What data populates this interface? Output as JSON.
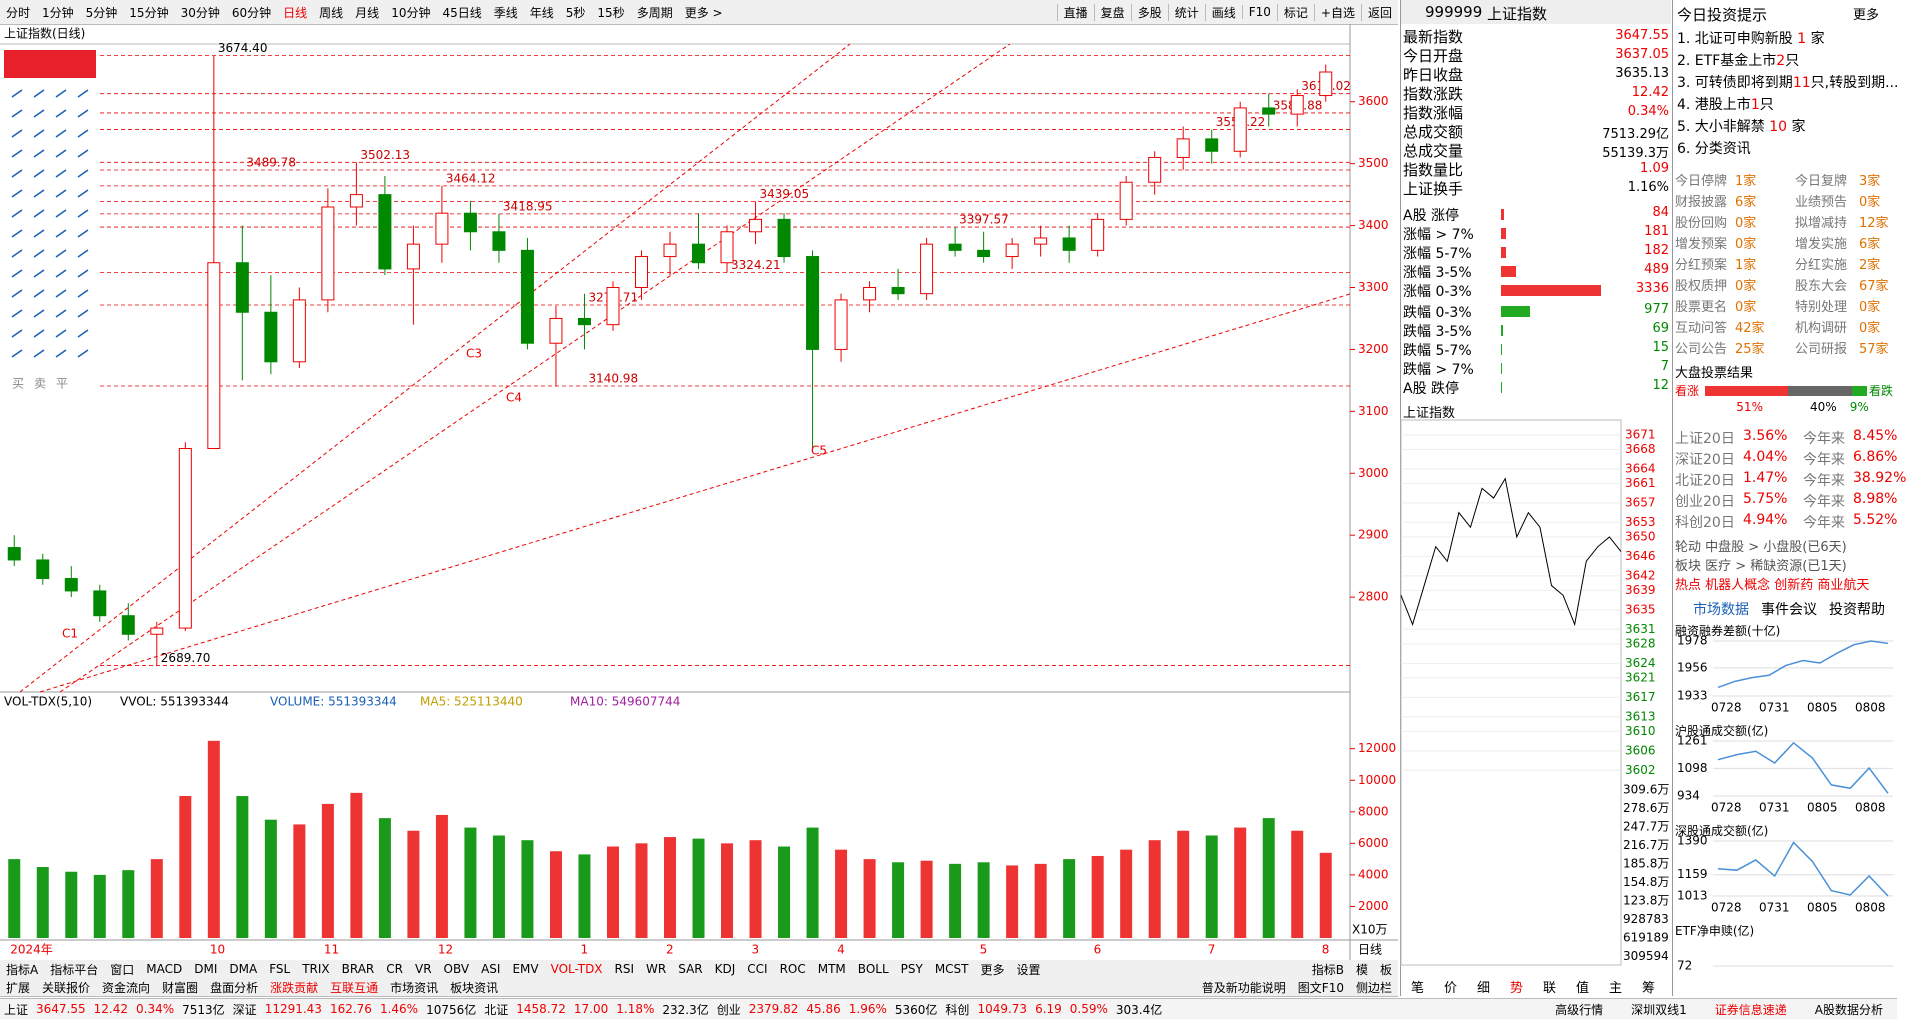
{
  "menu": [
    "分时",
    "1分钟",
    "5分钟",
    "15分钟",
    "30分钟",
    "60分钟",
    "日线",
    "周线",
    "月线",
    "10分钟",
    "45日线",
    "季线",
    "年线",
    "5秒",
    "15秒",
    "多周期",
    "更多 >"
  ],
  "menu_right": [
    "直播",
    "复盘",
    "多股",
    "统计",
    "画线",
    "F10",
    "标记",
    "+自选",
    "返回"
  ],
  "chart_title": "上证指数(日线)",
  "draw_tools": [
    "买",
    "卖",
    "平"
  ],
  "chart_data": {
    "type": "candlestick",
    "categories": [
      "2024年",
      null,
      null,
      null,
      null,
      null,
      null,
      "10",
      null,
      null,
      null,
      "11",
      null,
      null,
      null,
      "12",
      null,
      null,
      null,
      null,
      "1",
      null,
      null,
      "2",
      null,
      null,
      "3",
      null,
      null,
      "4",
      null,
      null,
      null,
      null,
      "5",
      null,
      null,
      null,
      "6",
      null,
      null,
      null,
      "7",
      null,
      null,
      null,
      "8"
    ],
    "candles": [
      [
        2880,
        2900,
        2850,
        2860
      ],
      [
        2860,
        2870,
        2820,
        2830
      ],
      [
        2830,
        2850,
        2800,
        2810
      ],
      [
        2810,
        2820,
        2760,
        2770
      ],
      [
        2770,
        2790,
        2730,
        2740
      ],
      [
        2740,
        2760,
        2690,
        2750
      ],
      [
        2750,
        3050,
        2745,
        3040
      ],
      [
        3040,
        3674,
        3040,
        3340
      ],
      [
        3340,
        3400,
        3150,
        3260
      ],
      [
        3260,
        3320,
        3160,
        3180
      ],
      [
        3180,
        3300,
        3170,
        3280
      ],
      [
        3280,
        3460,
        3260,
        3430
      ],
      [
        3430,
        3502,
        3400,
        3450
      ],
      [
        3450,
        3480,
        3320,
        3330
      ],
      [
        3330,
        3400,
        3240,
        3370
      ],
      [
        3370,
        3464,
        3340,
        3420
      ],
      [
        3420,
        3440,
        3360,
        3390
      ],
      [
        3390,
        3419,
        3340,
        3360
      ],
      [
        3360,
        3380,
        3200,
        3210
      ],
      [
        3210,
        3270,
        3140,
        3250
      ],
      [
        3250,
        3290,
        3200,
        3240
      ],
      [
        3240,
        3310,
        3230,
        3300
      ],
      [
        3300,
        3360,
        3280,
        3350
      ],
      [
        3350,
        3390,
        3320,
        3370
      ],
      [
        3370,
        3420,
        3330,
        3340
      ],
      [
        3340,
        3400,
        3324,
        3390
      ],
      [
        3390,
        3439,
        3370,
        3410
      ],
      [
        3410,
        3420,
        3340,
        3350
      ],
      [
        3350,
        3360,
        3040,
        3200
      ],
      [
        3200,
        3290,
        3180,
        3280
      ],
      [
        3280,
        3310,
        3260,
        3300
      ],
      [
        3300,
        3330,
        3280,
        3290
      ],
      [
        3290,
        3380,
        3280,
        3370
      ],
      [
        3370,
        3397,
        3350,
        3360
      ],
      [
        3360,
        3390,
        3340,
        3350
      ],
      [
        3350,
        3380,
        3330,
        3370
      ],
      [
        3370,
        3400,
        3350,
        3380
      ],
      [
        3380,
        3400,
        3340,
        3360
      ],
      [
        3360,
        3420,
        3350,
        3410
      ],
      [
        3410,
        3480,
        3400,
        3470
      ],
      [
        3470,
        3520,
        3450,
        3510
      ],
      [
        3510,
        3560,
        3490,
        3540
      ],
      [
        3540,
        3555,
        3500,
        3520
      ],
      [
        3520,
        3600,
        3510,
        3590
      ],
      [
        3590,
        3613,
        3560,
        3580
      ],
      [
        3580,
        3620,
        3560,
        3610
      ],
      [
        3610,
        3660,
        3600,
        3648
      ]
    ],
    "ylim": [
      2650,
      3690
    ],
    "yticks": [
      2800,
      2900,
      3000,
      3100,
      3200,
      3300,
      3400,
      3500,
      3600
    ],
    "annotations": [
      {
        "value": 3674.4,
        "label": "3674.40"
      },
      {
        "value": 2689.7,
        "label": "2689.70"
      },
      {
        "value": 3489.78,
        "label": "3489.78"
      },
      {
        "value": 3502.13,
        "label": "3502.13"
      },
      {
        "value": 3464.12,
        "label": "3464.12"
      },
      {
        "value": 3418.95,
        "label": "3418.95"
      },
      {
        "value": 3271.71,
        "label": "3271.71"
      },
      {
        "value": 3140.98,
        "label": "3140.98"
      },
      {
        "value": 3439.05,
        "label": "3439.05"
      },
      {
        "value": 3324.21,
        "label": "3324.21"
      },
      {
        "value": 3397.57,
        "label": "3397.57"
      },
      {
        "value": 3555.22,
        "label": "3555.22"
      },
      {
        "value": 3613.02,
        "label": "3613.02"
      },
      {
        "value": 3581.88,
        "label": "3581.88"
      }
    ],
    "pattern_labels": [
      "C1",
      "C3",
      "C4",
      "C5"
    ],
    "period_label": "日线",
    "volume": {
      "title": "VOL-TDX(5,10)",
      "legend": [
        "VVOL: 551393344",
        "VOLUME: 551393344",
        "MA5: 525113440",
        "MA10: 549607744"
      ],
      "values": [
        5000,
        4500,
        4200,
        4000,
        4300,
        5000,
        9000,
        12500,
        9000,
        7500,
        7200,
        8500,
        9200,
        7600,
        6800,
        7800,
        7000,
        6500,
        6200,
        5500,
        5300,
        5800,
        6000,
        6400,
        6300,
        6000,
        6200,
        5800,
        7000,
        5600,
        5000,
        4800,
        4900,
        4700,
        4800,
        4600,
        4700,
        5000,
        5200,
        5600,
        6200,
        6800,
        6500,
        7000,
        7600,
        6800,
        5400
      ],
      "ylim": [
        0,
        14200
      ],
      "yticks": [
        2000,
        4000,
        6000,
        8000,
        10000,
        12000
      ],
      "unit": "X10万"
    }
  },
  "quote": {
    "code": "999999",
    "name": "上证指数",
    "rows": [
      [
        "最新指数",
        "3647.55"
      ],
      [
        "今日开盘",
        "3637.05"
      ],
      [
        "昨日收盘",
        "3635.13"
      ],
      [
        "指数涨跌",
        "12.42"
      ],
      [
        "指数涨幅",
        "0.34%"
      ],
      [
        "总成交额",
        "7513.29亿"
      ],
      [
        "总成交量",
        "55139.3万"
      ],
      [
        "指数量比",
        "1.09"
      ],
      [
        "上证换手",
        "1.16%"
      ]
    ],
    "up": [
      [
        "A股 涨停",
        84
      ],
      [
        "涨幅 > 7%",
        181
      ],
      [
        "涨幅 5-7%",
        182
      ],
      [
        "涨幅 3-5%",
        489
      ],
      [
        "涨幅 0-3%",
        3336
      ]
    ],
    "down": [
      [
        "跌幅 0-3%",
        977
      ],
      [
        "跌幅 3-5%",
        69
      ],
      [
        "跌幅 5-7%",
        15
      ],
      [
        "跌幅 > 7%",
        7
      ],
      [
        "A股 跌停",
        12
      ]
    ],
    "intraday": {
      "title": "上证指数",
      "ylim": [
        3600,
        3672
      ],
      "yticks": [
        3671,
        3668,
        3664,
        3661,
        3657,
        3653,
        3650,
        3646,
        3642,
        3639,
        3635,
        3631,
        3628,
        3624,
        3621,
        3617,
        3613,
        3610,
        3606,
        3602
      ],
      "values": [
        3638,
        3632,
        3640,
        3648,
        3645,
        3655,
        3652,
        3660,
        3658,
        3662,
        3650,
        3655,
        3652,
        3640,
        3638,
        3632,
        3645,
        3648,
        3650,
        3647
      ],
      "vol_ticks": [
        "309.6万",
        "278.6万",
        "247.7万",
        "216.7万",
        "185.8万",
        "154.8万",
        "123.8万",
        "928783",
        "619189",
        "309594"
      ]
    },
    "tabs": [
      "笔",
      "价",
      "细",
      "势",
      "联",
      "值",
      "主",
      "筹"
    ]
  },
  "tips": {
    "title": "今日投资提示",
    "more": "更多",
    "items": [
      [
        "1. 北证可申购新股 ",
        "1",
        " 家"
      ],
      [
        "2. ETF基金上市",
        "2",
        "只"
      ],
      [
        "3. 可转债即将到期",
        "11",
        "只,转股到期..."
      ],
      [
        "4. 港股上市",
        "1",
        "只"
      ],
      [
        "5. 大小非解禁 ",
        "10",
        " 家"
      ],
      [
        "6. 分类资讯"
      ]
    ],
    "stats": [
      [
        "今日停牌",
        "1家",
        "今日复牌",
        "3家"
      ],
      [
        "财报披露",
        "6家",
        "业绩预告",
        "0家"
      ],
      [
        "股份回购",
        "0家",
        "拟增减持",
        "12家"
      ],
      [
        "增发预案",
        "0家",
        "增发实施",
        "6家"
      ],
      [
        "分红预案",
        "1家",
        "分红实施",
        "2家"
      ],
      [
        "股权质押",
        "0家",
        "股东大会",
        "67家"
      ],
      [
        "股票更名",
        "0家",
        "特别处理",
        "0家"
      ],
      [
        "互动问答",
        "42家",
        "机构调研",
        "0家"
      ],
      [
        "公司公告",
        "25家",
        "公司研报",
        "57家"
      ]
    ],
    "vote": {
      "title": "大盘投票结果",
      "bull": "看涨",
      "bear": "看跌",
      "values": [
        51,
        40,
        9
      ],
      "value_labels": [
        "51%",
        "40%",
        "9%"
      ]
    },
    "index20": [
      [
        "上证20日",
        "3.56%",
        "今年来",
        "8.45%"
      ],
      [
        "深证20日",
        "4.04%",
        "今年来",
        "6.86%"
      ],
      [
        "北证20日",
        "1.47%",
        "今年来",
        "38.92%"
      ],
      [
        "创业20日",
        "5.75%",
        "今年来",
        "8.98%"
      ],
      [
        "科创20日",
        "4.94%",
        "今年来",
        "5.52%"
      ]
    ],
    "rotation": [
      "轮动 中盘股 > 小盘股(已6天)",
      "板块 医疗 > 稀缺资源(已1天)",
      "热点 机器人概念 创新药 商业航天"
    ],
    "sub_tabs": [
      "市场数据",
      "事件会议",
      "投资帮助"
    ],
    "minis": [
      {
        "title": "融资融券差额(十亿)",
        "yticks": [
          1933,
          1956,
          1978
        ],
        "values": [
          1940,
          1945,
          1948,
          1950,
          1958,
          1962,
          1960,
          1968,
          1975,
          1978,
          1976
        ],
        "dates": [
          "0728",
          "0731",
          "0805",
          "0808"
        ]
      },
      {
        "title": "沪股通成交额(亿)",
        "yticks": [
          934,
          1098,
          1261
        ],
        "values": [
          1150,
          1180,
          1200,
          1130,
          1250,
          1160,
          1000,
          980,
          1100,
          950
        ],
        "dates": [
          "0728",
          "0731",
          "0805",
          "0808"
        ]
      },
      {
        "title": "深股通成交额(亿)",
        "yticks": [
          1013,
          1159,
          1390
        ],
        "values": [
          1200,
          1190,
          1260,
          1150,
          1380,
          1250,
          1050,
          1020,
          1150,
          1013
        ],
        "dates": [
          "0728",
          "0731",
          "0805",
          "0808"
        ]
      },
      {
        "title": "ETF净申赎(亿)",
        "yticks": [
          72
        ],
        "values": [],
        "dates": []
      }
    ]
  },
  "indicator_bar": [
    "指标A",
    "指标平台",
    "窗口",
    "MACD",
    "DMI",
    "DMA",
    "FSL",
    "TRIX",
    "BRAR",
    "CR",
    "VR",
    "OBV",
    "ASI",
    "EMV",
    "VOL-TDX",
    "RSI",
    "WR",
    "SAR",
    "KDJ",
    "CCI",
    "ROC",
    "MTM",
    "BOLL",
    "PSY",
    "MCST",
    "更多",
    "设置"
  ],
  "indicator_right": [
    "指标B",
    "模",
    "板"
  ],
  "bottom_tabs": [
    "扩展",
    "关联报价",
    "资金流向",
    "财富圈",
    "盘面分析",
    "涨跌贡献",
    "互联互通",
    "市场资讯",
    "板块资讯"
  ],
  "bottom_right": [
    "普及新功能说明",
    "图文F10",
    "侧边栏"
  ],
  "status": [
    [
      "上证",
      "k"
    ],
    [
      "3647.55",
      "r"
    ],
    [
      "12.42",
      "r"
    ],
    [
      "0.34%",
      "r"
    ],
    [
      "7513亿",
      "k"
    ],
    [
      "深证",
      "k"
    ],
    [
      "11291.43",
      "r"
    ],
    [
      "162.76",
      "r"
    ],
    [
      "1.46%",
      "r"
    ],
    [
      "10756亿",
      "k"
    ],
    [
      "北证",
      "k"
    ],
    [
      "1458.72",
      "r"
    ],
    [
      "17.00",
      "r"
    ],
    [
      "1.18%",
      "r"
    ],
    [
      "232.3亿",
      "k"
    ],
    [
      "创业",
      "k"
    ],
    [
      "2379.82",
      "r"
    ],
    [
      "45.86",
      "r"
    ],
    [
      "1.96%",
      "r"
    ],
    [
      "5360亿",
      "k"
    ],
    [
      "科创",
      "k"
    ],
    [
      "1049.73",
      "r"
    ],
    [
      "6.19",
      "r"
    ],
    [
      "0.59%",
      "r"
    ],
    [
      "303.4亿",
      "k"
    ]
  ],
  "status_right": [
    "高级行情",
    "深圳双线1",
    "证券信息速递",
    "A股数据分析"
  ]
}
